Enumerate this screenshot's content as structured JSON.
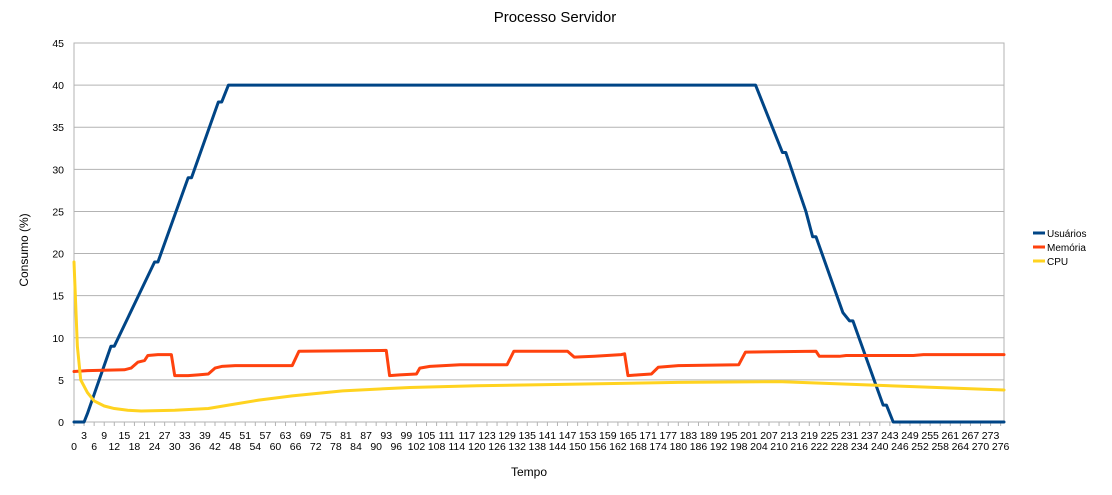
{
  "chart_data": {
    "type": "line",
    "title": "Processo Servidor",
    "xlabel": "Tempo",
    "ylabel": "Consumo (%)",
    "ylim": [
      0,
      45
    ],
    "y_ticks": [
      0,
      5,
      10,
      15,
      20,
      25,
      30,
      35,
      40,
      45
    ],
    "xlim": [
      0,
      277
    ],
    "x_tick_step": 3,
    "grid": true,
    "legend_position": "right",
    "series": [
      {
        "name": "Usuários",
        "color": "#004586",
        "points": [
          [
            0,
            0
          ],
          [
            3,
            0
          ],
          [
            4,
            1
          ],
          [
            11,
            9
          ],
          [
            12,
            9
          ],
          [
            24,
            19
          ],
          [
            25,
            19
          ],
          [
            34,
            29
          ],
          [
            35,
            29
          ],
          [
            43,
            38
          ],
          [
            44,
            38
          ],
          [
            46,
            40
          ],
          [
            203,
            40
          ],
          [
            211,
            32
          ],
          [
            212,
            32
          ],
          [
            218,
            25
          ],
          [
            220,
            22
          ],
          [
            221,
            22
          ],
          [
            229,
            13
          ],
          [
            231,
            12
          ],
          [
            232,
            12
          ],
          [
            241,
            2
          ],
          [
            242,
            2
          ],
          [
            244,
            0
          ],
          [
            277,
            0
          ]
        ]
      },
      {
        "name": "Memória",
        "color": "#ff420e",
        "points": [
          [
            0,
            6
          ],
          [
            4,
            6.1
          ],
          [
            15,
            6.2
          ],
          [
            17,
            6.4
          ],
          [
            19,
            7.1
          ],
          [
            21,
            7.3
          ],
          [
            22,
            7.9
          ],
          [
            25,
            8
          ],
          [
            29,
            8
          ],
          [
            30,
            5.5
          ],
          [
            34,
            5.5
          ],
          [
            37,
            5.6
          ],
          [
            40,
            5.7
          ],
          [
            42,
            6.4
          ],
          [
            44,
            6.6
          ],
          [
            48,
            6.7
          ],
          [
            65,
            6.7
          ],
          [
            67,
            8.4
          ],
          [
            93,
            8.5
          ],
          [
            94,
            5.5
          ],
          [
            97,
            5.6
          ],
          [
            102,
            5.7
          ],
          [
            103,
            6.4
          ],
          [
            106,
            6.6
          ],
          [
            115,
            6.8
          ],
          [
            129,
            6.8
          ],
          [
            131,
            8.4
          ],
          [
            147,
            8.4
          ],
          [
            149,
            7.7
          ],
          [
            155,
            7.8
          ],
          [
            163,
            8
          ],
          [
            164,
            8.1
          ],
          [
            165,
            5.5
          ],
          [
            168,
            5.6
          ],
          [
            172,
            5.7
          ],
          [
            174,
            6.5
          ],
          [
            180,
            6.7
          ],
          [
            198,
            6.8
          ],
          [
            200,
            8.3
          ],
          [
            221,
            8.4
          ],
          [
            222,
            7.8
          ],
          [
            228,
            7.8
          ],
          [
            230,
            7.9
          ],
          [
            250,
            7.9
          ],
          [
            253,
            8
          ],
          [
            277,
            8
          ]
        ]
      },
      {
        "name": "CPU",
        "color": "#ffd320",
        "points": [
          [
            0,
            19
          ],
          [
            1,
            9
          ],
          [
            2,
            5
          ],
          [
            4,
            3.5
          ],
          [
            6,
            2.5
          ],
          [
            9,
            1.9
          ],
          [
            12,
            1.6
          ],
          [
            16,
            1.4
          ],
          [
            20,
            1.3
          ],
          [
            30,
            1.4
          ],
          [
            40,
            1.6
          ],
          [
            46,
            2
          ],
          [
            55,
            2.6
          ],
          [
            65,
            3.1
          ],
          [
            80,
            3.7
          ],
          [
            100,
            4.1
          ],
          [
            120,
            4.3
          ],
          [
            150,
            4.5
          ],
          [
            180,
            4.7
          ],
          [
            210,
            4.8
          ],
          [
            230,
            4.5
          ],
          [
            250,
            4.2
          ],
          [
            277,
            3.8
          ]
        ]
      }
    ]
  }
}
